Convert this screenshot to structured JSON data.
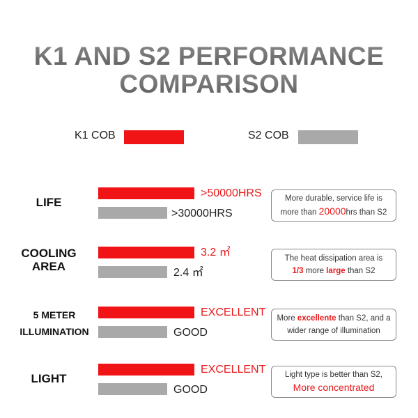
{
  "title": {
    "line1": "K1 AND S2 PERFORMANCE",
    "line2": "COMPARISON"
  },
  "legend": [
    {
      "label": "K1 COB",
      "color": "#f01416"
    },
    {
      "label": "S2 COB",
      "color": "#a9a9a9"
    }
  ],
  "colors": {
    "accent": "#e8191b",
    "k1": "#f01416",
    "s2": "#a9a9a9"
  },
  "chart_data": {
    "type": "bar",
    "orientation": "horizontal",
    "categories": [
      "LIFE",
      "COOLING AREA",
      "5 METER ILLUMINATION",
      "LIGHT"
    ],
    "series": [
      {
        "name": "K1 COB",
        "values": [
          50000,
          3.2,
          null,
          null
        ],
        "labels": [
          ">50000HRS",
          "3.2 ㎡",
          "EXCELLENT",
          "EXCELLENT"
        ]
      },
      {
        "name": "S2 COB",
        "values": [
          30000,
          2.4,
          null,
          null
        ],
        "labels": [
          ">30000HRS",
          "2.4 ㎡",
          "GOOD",
          "GOOD"
        ]
      }
    ],
    "relative_bar_length": {
      "K1 COB": 1.0,
      "S2 COB": 0.72
    },
    "grid": false,
    "legend_position": "top"
  },
  "rows": [
    {
      "category_lines": [
        "LIFE"
      ],
      "k1_label": ">50000HRS",
      "s2_label": ">30000HRS",
      "note": {
        "line1": [
          {
            "t": "More durable, service life is"
          }
        ],
        "line2": [
          {
            "t": "more than "
          },
          {
            "t": "20000",
            "hl": "big"
          },
          {
            "t": "hrs than S2"
          }
        ]
      }
    },
    {
      "category_lines": [
        "COOLING",
        "AREA"
      ],
      "k1_label": "3.2 ㎡",
      "s2_label": "2.4 ㎡",
      "note": {
        "line1": [
          {
            "t": "The heat dissipation area is"
          }
        ],
        "line2": [
          {
            "t": "1/3",
            "hl": "bold"
          },
          {
            "t": " more "
          },
          {
            "t": "large",
            "hl": "bold"
          },
          {
            "t": " than S2"
          }
        ]
      }
    },
    {
      "category_lines": [
        "5 METER",
        "ILLUMINATION"
      ],
      "k1_label": "EXCELLENT",
      "s2_label": "GOOD",
      "note": {
        "line1": [
          {
            "t": "More "
          },
          {
            "t": "excellente",
            "hl": "bold"
          },
          {
            "t": " than S2, and a"
          }
        ],
        "line2": [
          {
            "t": "wider range of illumination"
          }
        ]
      }
    },
    {
      "category_lines": [
        "LIGHT"
      ],
      "k1_label": "EXCELLENT",
      "s2_label": "GOOD",
      "note": {
        "line1": [
          {
            "t": "Light type is better than S2,"
          }
        ],
        "line2": [
          {
            "t": "More concentrated",
            "hl": "big"
          }
        ]
      }
    }
  ]
}
